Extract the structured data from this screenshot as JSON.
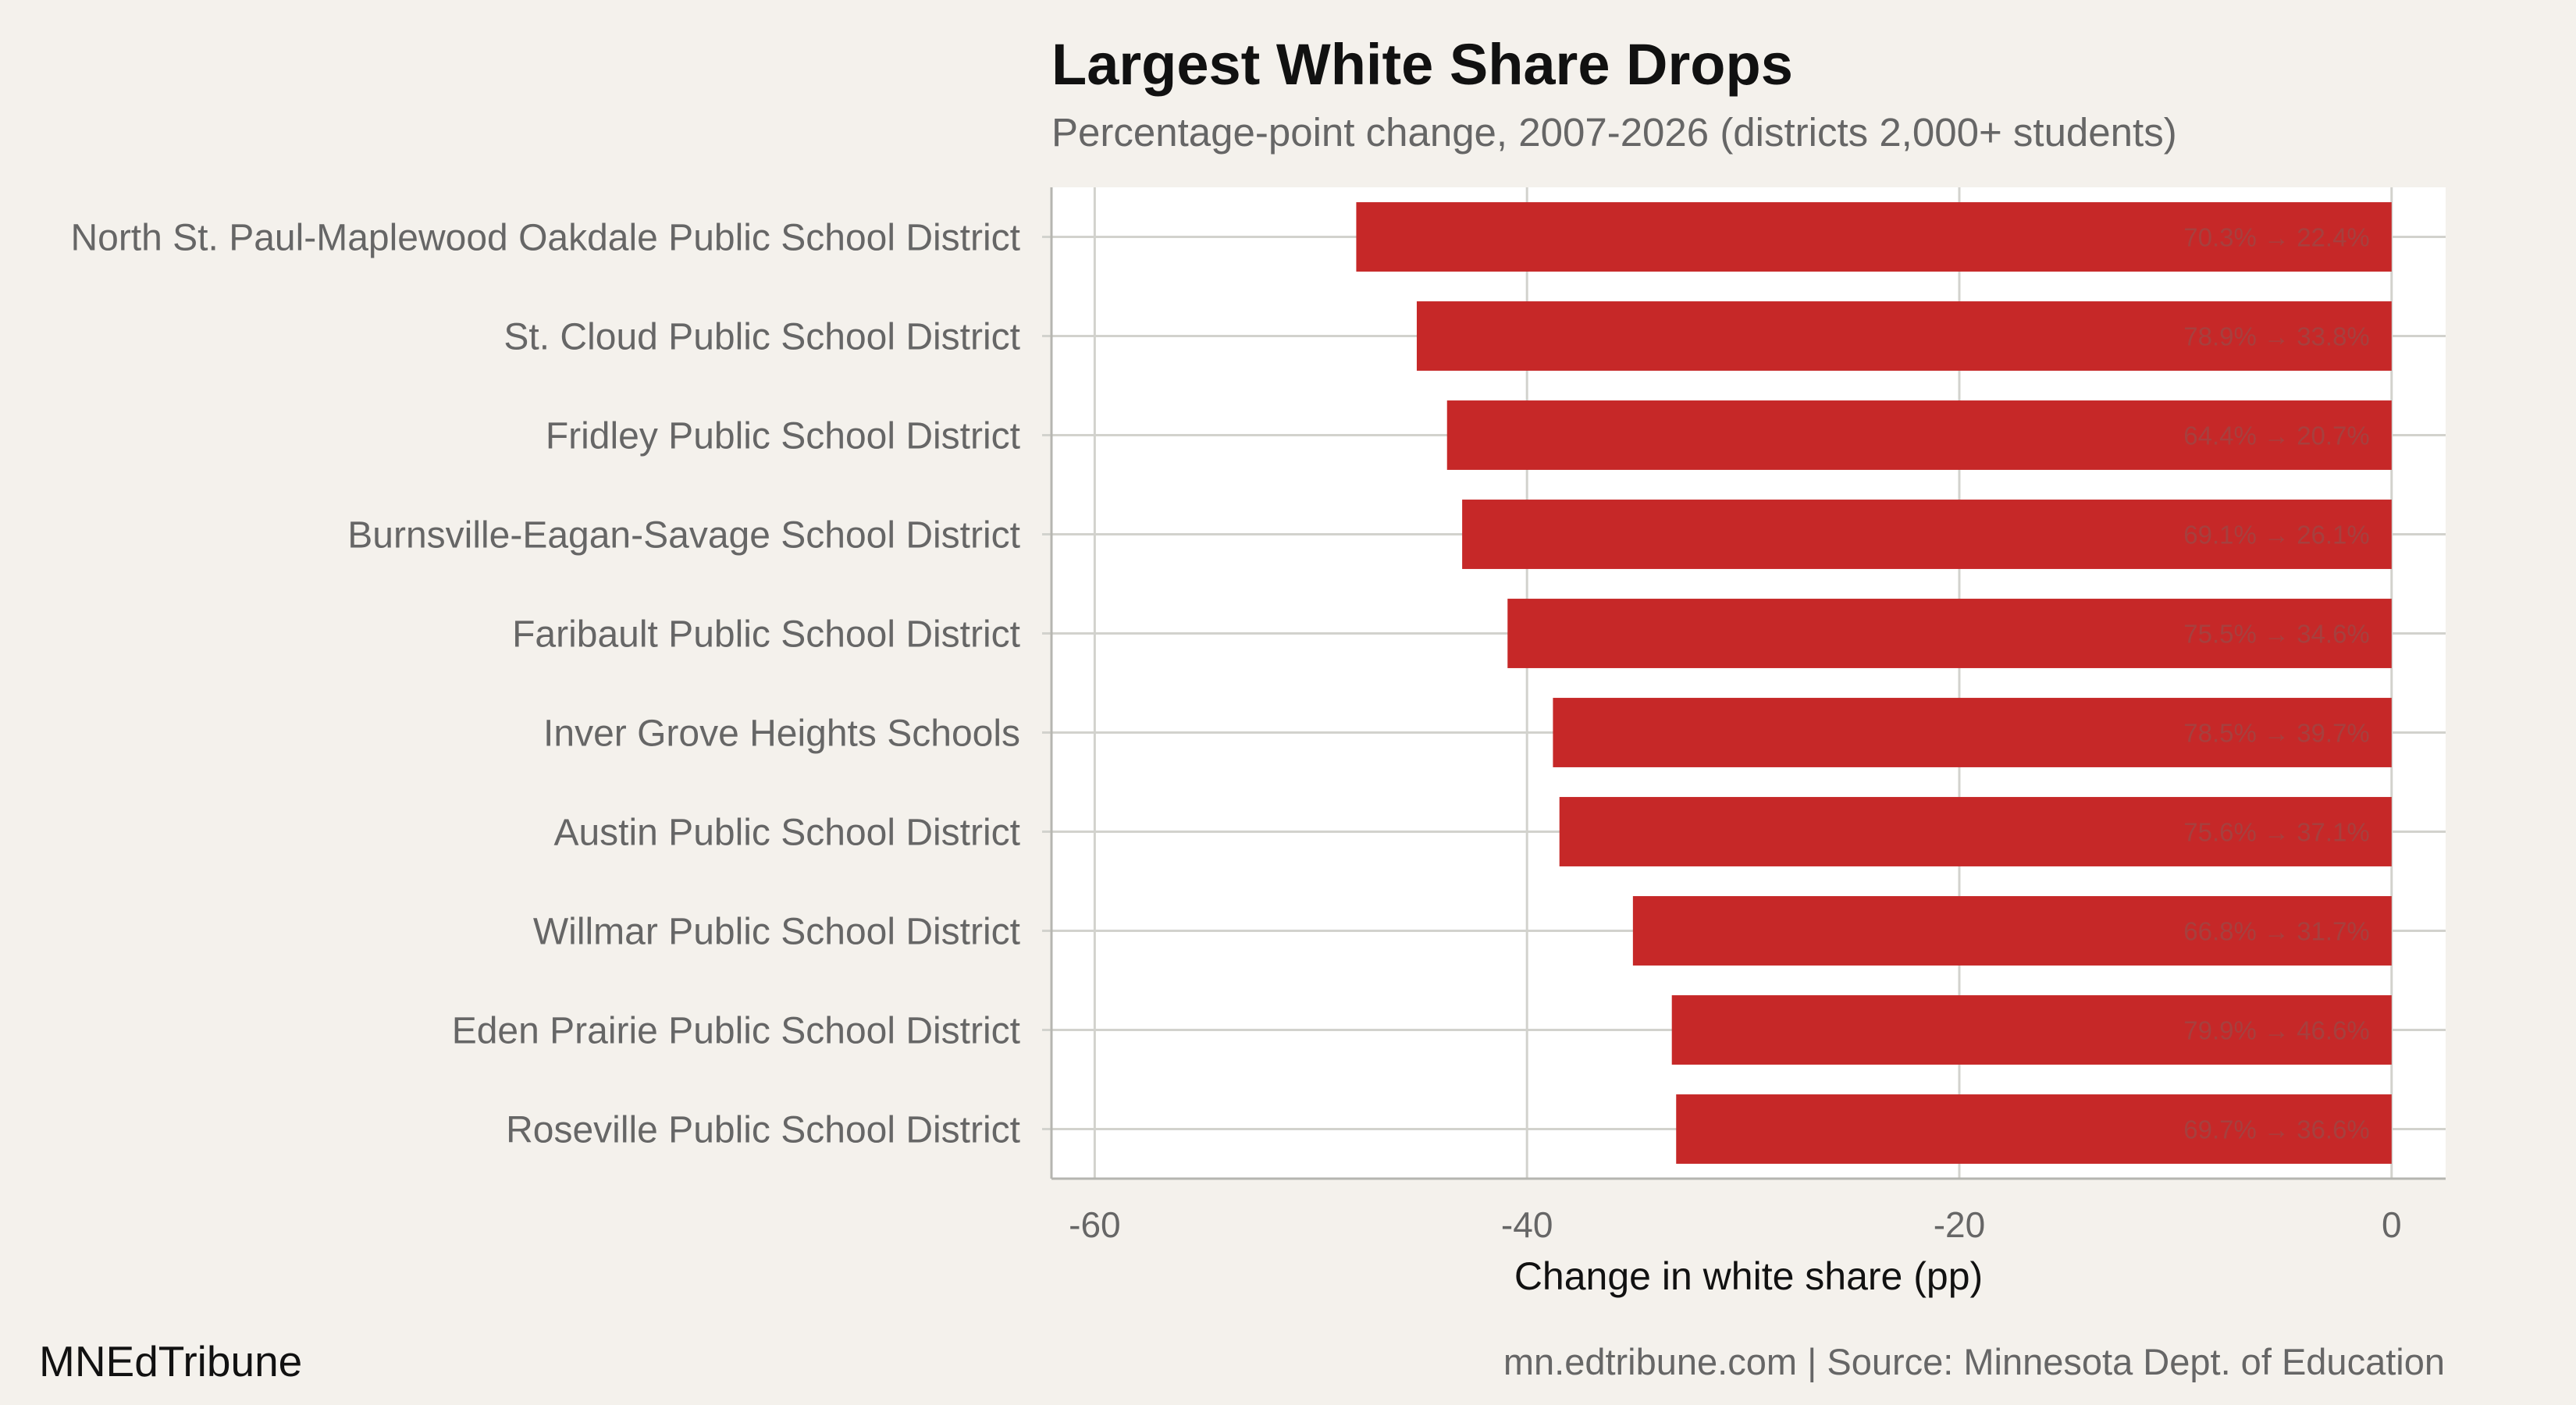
{
  "chart_data": {
    "type": "bar",
    "orientation": "horizontal",
    "title": "Largest White Share Drops",
    "subtitle": "Percentage-point change, 2007-2026 (districts 2,000+ students)",
    "xlabel": "Change in white share (pp)",
    "ylabel": "",
    "xlim": [
      -62,
      2.5
    ],
    "xticks": [
      -60,
      -40,
      -20,
      0
    ],
    "grid": true,
    "bar_color": "#c62828",
    "categories": [
      "North St. Paul-Maplewood Oakdale Public School District",
      "St. Cloud Public School District",
      "Fridley Public School District",
      "Burnsville-Eagan-Savage School District",
      "Faribault Public School District",
      "Inver Grove Heights Schools",
      "Austin Public School District",
      "Willmar Public School District",
      "Eden Prairie Public School District",
      "Roseville Public School District"
    ],
    "values": [
      -47.9,
      -45.1,
      -43.7,
      -43.0,
      -40.9,
      -38.8,
      -38.5,
      -35.1,
      -33.3,
      -33.1
    ],
    "bar_labels": [
      "70.3% → 22.4%",
      "78.9% → 33.8%",
      "64.4% → 20.7%",
      "69.1% → 26.1%",
      "75.5% → 34.6%",
      "78.5% → 39.7%",
      "75.6% → 37.1%",
      "66.8% → 31.7%",
      "79.9% → 46.6%",
      "69.7% → 36.6%"
    ]
  },
  "footer": {
    "brand": "MNEdTribune",
    "source": "mn.edtribune.com | Source: Minnesota Dept. of Education"
  }
}
